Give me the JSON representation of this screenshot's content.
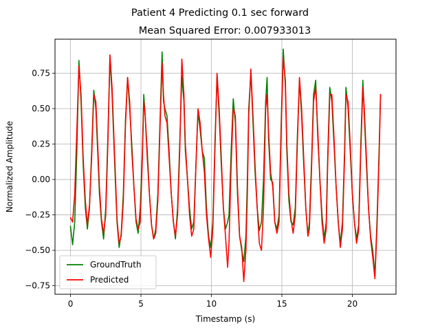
{
  "chart_data": {
    "type": "line",
    "title": "Patient 4 Predicting 0.1 sec forward",
    "subtitle": "Mean Squared Error: 0.007933013",
    "xlabel": "Timestamp (s)",
    "ylabel": "Normalized Amplitude",
    "xlim": [
      -1.1,
      23.1
    ],
    "ylim": [
      -0.81,
      0.99
    ],
    "xticks": [
      0,
      5,
      10,
      15,
      20
    ],
    "xtick_labels": [
      "0",
      "5",
      "10",
      "15",
      "20"
    ],
    "yticks": [
      -0.75,
      -0.5,
      -0.25,
      0.0,
      0.25,
      0.5,
      0.75
    ],
    "ytick_labels": [
      "−0.75",
      "−0.50",
      "−0.25",
      "0.00",
      "0.25",
      "0.50",
      "0.75"
    ],
    "grid": true,
    "legend_position": "lower-left",
    "series": [
      {
        "name": "GroundTruth",
        "color": "#008000",
        "x": [
          0.0,
          0.15,
          0.3,
          0.45,
          0.6,
          0.75,
          0.9,
          1.05,
          1.2,
          1.35,
          1.5,
          1.65,
          1.8,
          1.95,
          2.05,
          2.2,
          2.35,
          2.5,
          2.65,
          2.8,
          2.95,
          3.1,
          3.2,
          3.3,
          3.45,
          3.6,
          3.75,
          3.9,
          4.05,
          4.2,
          4.35,
          4.5,
          4.65,
          4.8,
          4.95,
          5.1,
          5.2,
          5.3,
          5.45,
          5.6,
          5.75,
          5.9,
          6.05,
          6.2,
          6.35,
          6.5,
          6.6,
          6.7,
          6.85,
          7.0,
          7.15,
          7.3,
          7.45,
          7.6,
          7.75,
          7.9,
          8.05,
          8.15,
          8.3,
          8.45,
          8.6,
          8.75,
          8.9,
          9.05,
          9.2,
          9.35,
          9.5,
          9.65,
          9.8,
          9.95,
          10.1,
          10.25,
          10.4,
          10.55,
          10.7,
          10.85,
          11.0,
          11.15,
          11.25,
          11.4,
          11.55,
          11.7,
          11.85,
          12.0,
          12.15,
          12.3,
          12.45,
          12.55,
          12.65,
          12.8,
          12.95,
          13.1,
          13.25,
          13.4,
          13.55,
          13.7,
          13.85,
          13.95,
          14.05,
          14.2,
          14.35,
          14.5,
          14.65,
          14.8,
          14.95,
          15.1,
          15.25,
          15.35,
          15.5,
          15.65,
          15.8,
          15.95,
          16.1,
          16.25,
          16.4,
          16.55,
          16.7,
          16.85,
          16.95,
          17.1,
          17.25,
          17.4,
          17.55,
          17.7,
          17.85,
          18.0,
          18.15,
          18.25,
          18.4,
          18.55,
          18.7,
          18.85,
          19.0,
          19.15,
          19.3,
          19.45,
          19.55,
          19.7,
          19.85,
          20.0,
          20.15,
          20.3,
          20.45,
          20.6,
          20.75,
          20.85,
          21.0,
          21.15,
          21.3,
          21.45,
          21.6,
          21.75,
          21.9,
          22.0
        ],
        "y": [
          -0.33,
          -0.46,
          -0.3,
          0.2,
          0.84,
          0.55,
          0.1,
          -0.2,
          -0.35,
          -0.2,
          0.2,
          0.63,
          0.5,
          0.15,
          -0.1,
          -0.3,
          -0.42,
          -0.2,
          0.3,
          0.85,
          0.6,
          0.2,
          -0.05,
          -0.3,
          -0.48,
          -0.38,
          -0.1,
          0.42,
          0.72,
          0.5,
          0.25,
          -0.05,
          -0.3,
          -0.38,
          -0.2,
          0.2,
          0.6,
          0.45,
          0.2,
          -0.1,
          -0.32,
          -0.42,
          -0.35,
          -0.1,
          0.4,
          0.9,
          0.55,
          0.5,
          0.45,
          0.2,
          -0.1,
          -0.3,
          -0.42,
          -0.2,
          0.25,
          0.73,
          0.55,
          0.2,
          0.0,
          -0.2,
          -0.35,
          -0.3,
          0.1,
          0.48,
          0.35,
          0.2,
          0.15,
          -0.2,
          -0.4,
          -0.48,
          -0.3,
          0.25,
          0.73,
          0.45,
          0.1,
          -0.2,
          -0.35,
          -0.3,
          -0.25,
          0.2,
          0.57,
          0.4,
          -0.1,
          -0.4,
          -0.5,
          -0.58,
          -0.4,
          0.0,
          0.5,
          0.75,
          0.4,
          0.05,
          -0.2,
          -0.36,
          -0.3,
          0.0,
          0.55,
          0.72,
          0.3,
          0.0,
          -0.02,
          -0.3,
          -0.35,
          -0.25,
          0.4,
          0.92,
          0.65,
          0.2,
          -0.15,
          -0.3,
          -0.32,
          -0.2,
          0.3,
          0.7,
          0.45,
          0.1,
          -0.2,
          -0.4,
          -0.3,
          0.1,
          0.6,
          0.7,
          0.3,
          0.0,
          -0.25,
          -0.42,
          -0.3,
          0.15,
          0.65,
          0.55,
          0.25,
          -0.05,
          -0.3,
          -0.45,
          -0.3,
          0.2,
          0.65,
          0.5,
          0.2,
          -0.1,
          -0.3,
          -0.42,
          -0.32,
          0.25,
          0.7,
          0.45,
          0.1,
          -0.2,
          -0.4,
          -0.5,
          -0.68,
          -0.3,
          0.2,
          0.6
        ]
      },
      {
        "name": "Predicted",
        "color": "#ff0000",
        "x": [
          0.0,
          0.15,
          0.3,
          0.45,
          0.6,
          0.75,
          0.9,
          1.05,
          1.2,
          1.35,
          1.5,
          1.65,
          1.8,
          1.95,
          2.05,
          2.2,
          2.35,
          2.5,
          2.65,
          2.8,
          2.95,
          3.1,
          3.2,
          3.3,
          3.45,
          3.6,
          3.75,
          3.9,
          4.05,
          4.2,
          4.35,
          4.5,
          4.65,
          4.8,
          4.95,
          5.1,
          5.2,
          5.3,
          5.45,
          5.6,
          5.75,
          5.9,
          6.05,
          6.2,
          6.35,
          6.5,
          6.6,
          6.7,
          6.85,
          7.0,
          7.15,
          7.3,
          7.45,
          7.6,
          7.75,
          7.9,
          8.05,
          8.15,
          8.3,
          8.45,
          8.6,
          8.75,
          8.9,
          9.05,
          9.2,
          9.35,
          9.5,
          9.65,
          9.8,
          9.95,
          10.1,
          10.25,
          10.4,
          10.55,
          10.7,
          10.85,
          11.0,
          11.15,
          11.25,
          11.4,
          11.55,
          11.7,
          11.85,
          12.0,
          12.15,
          12.3,
          12.45,
          12.55,
          12.65,
          12.8,
          12.95,
          13.1,
          13.25,
          13.4,
          13.55,
          13.7,
          13.85,
          13.95,
          14.05,
          14.2,
          14.35,
          14.5,
          14.65,
          14.8,
          14.95,
          15.1,
          15.25,
          15.35,
          15.5,
          15.65,
          15.8,
          15.95,
          16.1,
          16.25,
          16.4,
          16.55,
          16.7,
          16.85,
          16.95,
          17.1,
          17.25,
          17.4,
          17.55,
          17.7,
          17.85,
          18.0,
          18.15,
          18.25,
          18.4,
          18.55,
          18.7,
          18.85,
          19.0,
          19.15,
          19.3,
          19.45,
          19.55,
          19.7,
          19.85,
          20.0,
          20.15,
          20.3,
          20.45,
          20.6,
          20.75,
          20.85,
          21.0,
          21.15,
          21.3,
          21.45,
          21.6,
          21.75,
          21.9,
          22.0
        ],
        "y": [
          -0.27,
          -0.3,
          -0.1,
          0.35,
          0.8,
          0.6,
          0.15,
          -0.15,
          -0.32,
          -0.18,
          0.15,
          0.6,
          0.55,
          0.2,
          -0.05,
          -0.28,
          -0.38,
          -0.25,
          0.25,
          0.88,
          0.65,
          0.25,
          0.0,
          -0.28,
          -0.45,
          -0.4,
          -0.15,
          0.38,
          0.72,
          0.55,
          0.2,
          -0.05,
          -0.28,
          -0.35,
          -0.3,
          0.15,
          0.55,
          0.45,
          0.15,
          -0.1,
          -0.32,
          -0.42,
          -0.38,
          -0.15,
          0.35,
          0.82,
          0.6,
          0.45,
          0.4,
          0.15,
          -0.1,
          -0.3,
          -0.4,
          -0.25,
          0.2,
          0.85,
          0.6,
          0.25,
          0.0,
          -0.25,
          -0.4,
          -0.35,
          0.1,
          0.5,
          0.4,
          0.2,
          0.05,
          -0.25,
          -0.42,
          -0.55,
          -0.35,
          0.2,
          0.75,
          0.5,
          0.15,
          -0.2,
          -0.4,
          -0.62,
          -0.45,
          0.1,
          0.5,
          0.45,
          -0.05,
          -0.4,
          -0.48,
          -0.72,
          -0.5,
          -0.1,
          0.45,
          0.78,
          0.45,
          0.1,
          -0.2,
          -0.45,
          -0.5,
          -0.2,
          0.5,
          0.6,
          0.35,
          0.05,
          -0.05,
          -0.3,
          -0.38,
          -0.3,
          0.35,
          0.86,
          0.7,
          0.25,
          -0.1,
          -0.28,
          -0.38,
          -0.25,
          0.25,
          0.72,
          0.5,
          0.15,
          -0.2,
          -0.4,
          -0.35,
          0.05,
          0.55,
          0.65,
          0.35,
          0.0,
          -0.3,
          -0.45,
          -0.35,
          0.1,
          0.6,
          0.6,
          0.3,
          -0.05,
          -0.3,
          -0.48,
          -0.35,
          0.15,
          0.6,
          0.55,
          0.25,
          -0.1,
          -0.3,
          -0.45,
          -0.36,
          0.2,
          0.65,
          0.5,
          0.15,
          -0.2,
          -0.42,
          -0.55,
          -0.7,
          -0.35,
          0.15,
          0.6
        ]
      }
    ]
  }
}
